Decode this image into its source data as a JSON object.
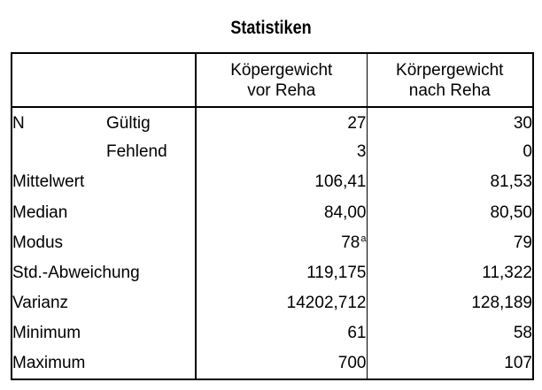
{
  "title": "Statistiken",
  "columns": {
    "col_a": [
      "Köpergewicht",
      "vor Reha"
    ],
    "col_b": [
      "Körpergewicht",
      "nach Reha"
    ]
  },
  "rows": [
    {
      "label": "N",
      "sub": "Gültig",
      "a": "27",
      "b": "30"
    },
    {
      "label": "",
      "sub": "Fehlend",
      "a": "3",
      "b": "0"
    },
    {
      "label": "Mittelwert",
      "sub": "",
      "a": "106,41",
      "b": "81,53"
    },
    {
      "label": "Median",
      "sub": "",
      "a": "84,00",
      "b": "80,50"
    },
    {
      "label": "Modus",
      "sub": "",
      "a": "78",
      "a_footnote": "a",
      "b": "79"
    },
    {
      "label": "Std.-Abweichung",
      "sub": "",
      "a": "119,175",
      "b": "11,322"
    },
    {
      "label": "Varianz",
      "sub": "",
      "a": "14202,712",
      "b": "128,189"
    },
    {
      "label": "Minimum",
      "sub": "",
      "a": "61",
      "b": "58"
    },
    {
      "label": "Maximum",
      "sub": "",
      "a": "700",
      "b": "107"
    }
  ]
}
